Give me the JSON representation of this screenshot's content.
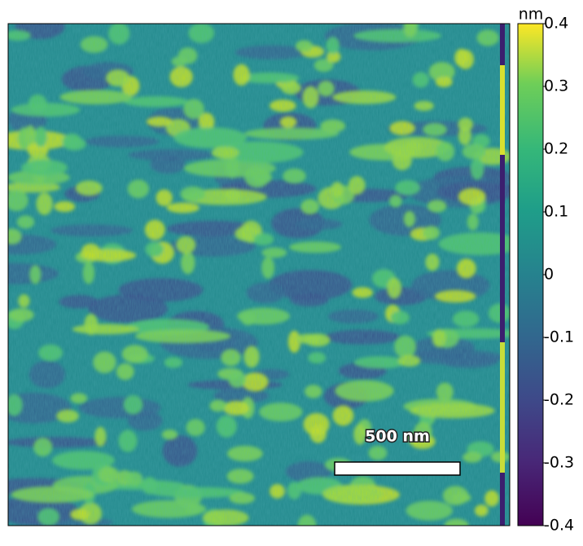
{
  "image": {
    "scale_bar": {
      "label": "500 nm"
    }
  },
  "colorbar": {
    "unit": "nm",
    "lim": [
      -0.4,
      0.4
    ],
    "ticks": [
      -0.4,
      -0.3,
      -0.2,
      -0.1,
      0,
      0.1,
      0.2,
      0.3,
      0.4
    ]
  }
}
